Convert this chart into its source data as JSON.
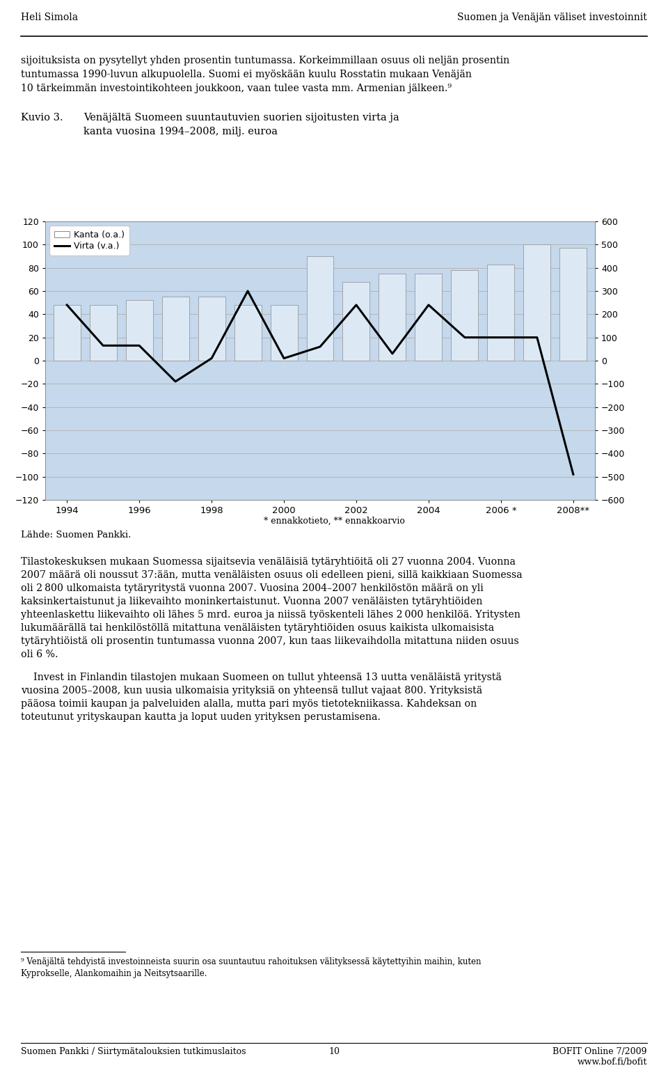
{
  "years": [
    1994,
    1995,
    1996,
    1997,
    1998,
    1999,
    2000,
    2001,
    2002,
    2003,
    2004,
    2005,
    2006,
    2007,
    2008
  ],
  "x_tick_positions": [
    1994,
    1996,
    1998,
    2000,
    2002,
    2004,
    2006,
    2008
  ],
  "x_tick_labels": [
    "1994",
    "1996",
    "1998",
    "2000",
    "2002",
    "2004",
    "2006 *",
    "2008**"
  ],
  "kanta": [
    48,
    48,
    52,
    55,
    55,
    48,
    48,
    90,
    68,
    75,
    75,
    78,
    83,
    100,
    97
  ],
  "virta": [
    240,
    65,
    65,
    -90,
    10,
    300,
    10,
    60,
    240,
    30,
    240,
    100,
    100,
    100,
    -490
  ],
  "bar_color": "#dce9f5",
  "bar_edge_color": "#999999",
  "line_color": "#000000",
  "bg_color": "#c5d8ec",
  "left_ylim": [
    -120,
    120
  ],
  "right_ylim": [
    -600,
    600
  ],
  "left_yticks": [
    -120,
    -100,
    -80,
    -60,
    -40,
    -20,
    0,
    20,
    40,
    60,
    80,
    100,
    120
  ],
  "right_yticks": [
    -600,
    -500,
    -400,
    -300,
    -200,
    -100,
    0,
    100,
    200,
    300,
    400,
    500,
    600
  ],
  "grid_color": "#b0b0b0",
  "footnote": "* ennakkotieto, ** ennakkoarvio",
  "source": "Lähde: Suomen Pankki.",
  "legend_kanta": "Kanta (o.a.)",
  "legend_virta": "Virta (v.a.)",
  "header_left": "Heli Simola",
  "header_right": "Suomen ja Venäjän väliset investoinnit",
  "kuvio_label": "Kuvio 3.",
  "kuvio_title1": "Venäjältä Suomeen suuntautuvien suorien sijoitusten virta ja",
  "kuvio_title2": "kanta vuosina 1994–2008, milj. euroa",
  "para1_line1": "sijoituksista on pysytellyt yhden prosentin tuntumassa. Korkeimmillaan osuus oli neljän prosentin",
  "para1_line2": "tuntumassa 1990-luvun alkupuolella. Suomi ei myöskään kuulu Rosstatin mukaan Venäjän",
  "para1_line3": "10 tärkeimmän investointikohteen joukkoon, vaan tulee vasta mm. Armenian jälkeen.⁹",
  "para2": "Tilastokeskuksen mukaan Suomessa sijaitsevia venäläisiä tytäryhtiöitä oli 27 vuonna 2004. Vuonna 2007 määrä oli noussut 37:ään, mutta venäläisten osuus oli edelleen pieni, sillä kaikkiaan Suomessa oli 2 800 ulkomaista tytäryritystä vuonna 2007. Vuosina 2004–2007 henkilöstön määrä on yli kaksinkertaistunut ja liikevaihto moninkertaistunut. Vuonna 2007 venäläisten tytäryhtiöiden yhteenlaskettu liikevaihto oli lähes 5 mrd. euroa ja niissä työskenteli lähes 2 000 henkilöä. Yritysten lukumäärällä tai henkilöstöllä mitattuna venäläisten tytäryhtiöiden osuus kaikista ulkomaisista tytäryhtiöistä oli prosentin tuntumassa vuonna 2007, kun taas liikevaihdolla mitattuna niiden osuus oli 6 %.",
  "para3": "    Invest in Finlandin tilastojen mukaan Suomeen on tullut yhteensä 13 uutta venäläistä yritystä vuosina 2005–2008, kun uusia ulkomaisia yrityksiä on yhteensä tullut vajaat 800. Yrityksistä pääosa toimii kaupan ja palveluiden alalla, mutta pari myös tietotekniikassa. Kahdeksan on toteutunut yrityskaupan kautta ja loput uuden yrityksen perustamisena.",
  "footnote9": "⁹ Venäjältä tehdyistä investoinneista suurin osa suuntautuu rahoituksen välityksessä käytettyihin maihin, kuten\nKyprokselle, Alankomaihin ja Neitsytsaarille.",
  "footer_left": "Suomen Pankki / Siirtymätalouksien tutkimuslaitos",
  "footer_center": "10",
  "footer_right": "BOFIT Online 7/2009\nwww.bof.fi/bofit"
}
